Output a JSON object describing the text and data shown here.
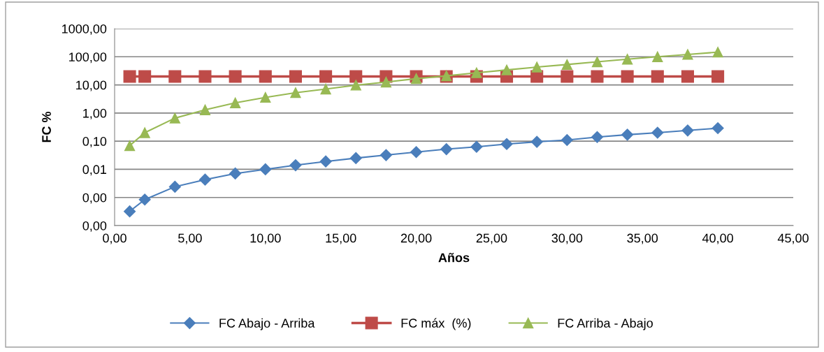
{
  "chart_data": {
    "type": "line",
    "xlabel": "Años",
    "ylabel": "FC %",
    "log": "y",
    "grid": "y",
    "legend": "bottom",
    "line_style": "solid",
    "x": [
      1,
      2,
      4,
      6,
      8,
      10,
      12,
      14,
      16,
      18,
      20,
      22,
      24,
      26,
      28,
      30,
      32,
      34,
      36,
      38,
      40
    ],
    "xlim": [
      0,
      45
    ],
    "xticks": [
      {
        "value": 0,
        "label": "0,00"
      },
      {
        "value": 5,
        "label": "5,00"
      },
      {
        "value": 10,
        "label": "10,00"
      },
      {
        "value": 15,
        "label": "15,00"
      },
      {
        "value": 20,
        "label": "20,00"
      },
      {
        "value": 25,
        "label": "25,00"
      },
      {
        "value": 30,
        "label": "30,00"
      },
      {
        "value": 35,
        "label": "35,00"
      },
      {
        "value": 40,
        "label": "40,00"
      },
      {
        "value": 45,
        "label": "45,00"
      }
    ],
    "ylim": [
      0.0001,
      1000
    ],
    "yticks": [
      {
        "value": 0.0001,
        "label": "0,00"
      },
      {
        "value": 0.001,
        "label": "0,00"
      },
      {
        "value": 0.01,
        "label": "0,01"
      },
      {
        "value": 0.1,
        "label": "0,10"
      },
      {
        "value": 1,
        "label": "1,00"
      },
      {
        "value": 10,
        "label": "10,00"
      },
      {
        "value": 100,
        "label": "100,00"
      },
      {
        "value": 1000,
        "label": "1000,00"
      }
    ],
    "series": [
      {
        "name": "FC Abajo - Arriba",
        "color": "#4a7ebb",
        "marker": "diamond",
        "values": [
          0.00032,
          0.00084,
          0.0024,
          0.0043,
          0.0071,
          0.01,
          0.014,
          0.019,
          0.025,
          0.032,
          0.041,
          0.052,
          0.063,
          0.079,
          0.095,
          0.11,
          0.14,
          0.17,
          0.2,
          0.24,
          0.29
        ]
      },
      {
        "name": "FC máx  (%)",
        "color": "#be4b48",
        "marker": "square",
        "values": [
          20,
          20,
          20,
          20,
          20,
          20,
          20,
          20,
          20,
          20,
          20,
          20,
          20,
          20,
          20,
          20,
          20,
          20,
          20,
          20,
          20
        ]
      },
      {
        "name": "FC Arriba - Abajo",
        "color": "#98b954",
        "marker": "triangle",
        "values": [
          0.069,
          0.2,
          0.66,
          1.3,
          2.3,
          3.6,
          5.3,
          7.1,
          9.8,
          12.6,
          16.7,
          21,
          27,
          34,
          43,
          53,
          66,
          82,
          100,
          121,
          146
        ]
      }
    ]
  }
}
